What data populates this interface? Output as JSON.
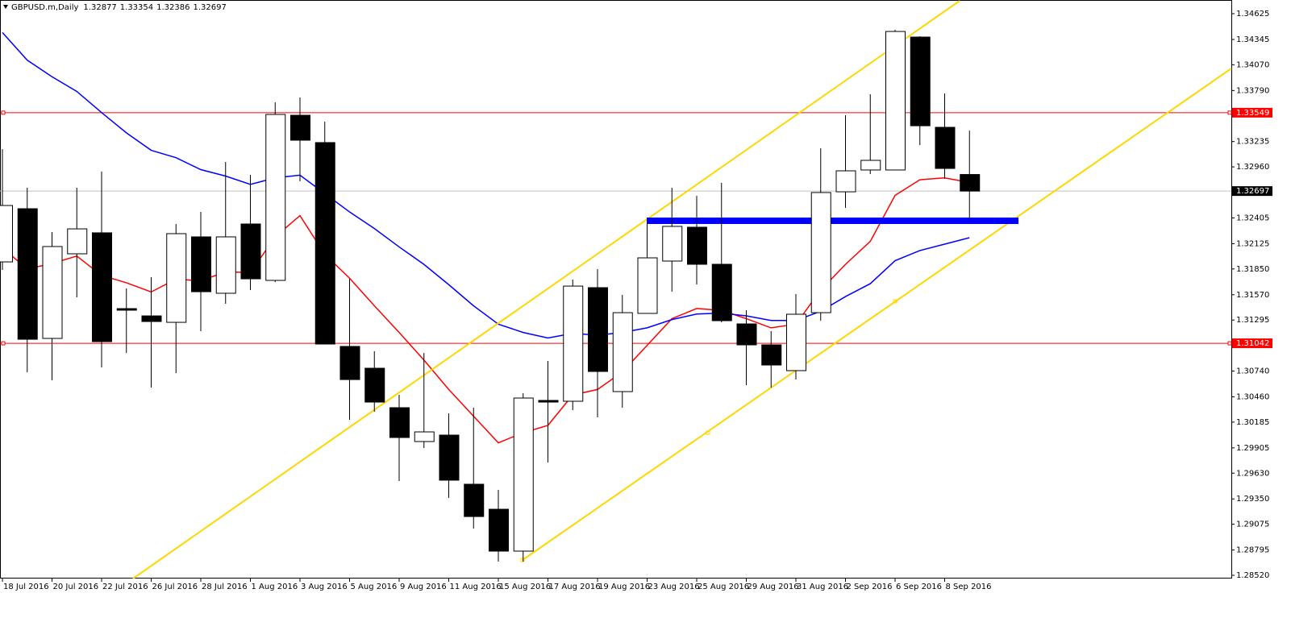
{
  "chart_data": {
    "type": "candlestick",
    "title": "GBPUSD.m,Daily",
    "categories": [
      "18 Jul 2016",
      null,
      "20 Jul 2016",
      null,
      "22 Jul 2016",
      null,
      "26 Jul 2016",
      null,
      "28 Jul 2016",
      null,
      "1 Aug 2016",
      null,
      "3 Aug 2016",
      null,
      "5 Aug 2016",
      null,
      "9 Aug 2016",
      null,
      "11 Aug 2016",
      null,
      "15 Aug 2016",
      null,
      "17 Aug 2016",
      null,
      "19 Aug 2016",
      null,
      "23 Aug 2016",
      null,
      "25 Aug 2016",
      null,
      "29 Aug 2016",
      null,
      "31 Aug 2016",
      null,
      "2 Sep 2016",
      null,
      "6 Sep 2016",
      null,
      "8 Sep 2016",
      null
    ],
    "open": [
      1.31927,
      1.32505,
      1.31095,
      1.32015,
      1.32243,
      1.31419,
      1.3134,
      1.3127,
      1.32199,
      1.31586,
      1.32339,
      1.31726,
      1.33521,
      1.33224,
      1.31008,
      1.30771,
      1.30342,
      1.29974,
      1.30044,
      1.2951,
      1.29238,
      1.28783,
      1.30421,
      1.30412,
      1.31647,
      1.30517,
      1.31367,
      1.31936,
      1.32304,
      1.31901,
      1.31253,
      1.31025,
      1.30745,
      1.31375,
      1.32689,
      1.32926,
      1.32926,
      1.34371,
      1.3339,
      1.32877
    ],
    "high": [
      1.33153,
      1.32733,
      1.32251,
      1.32733,
      1.32908,
      1.31638,
      1.31761,
      1.32339,
      1.3247,
      1.33013,
      1.32873,
      1.33662,
      1.33714,
      1.33451,
      1.31743,
      1.30955,
      1.30482,
      1.30937,
      1.30281,
      1.30342,
      1.29448,
      1.305,
      1.3085,
      1.31735,
      1.31848,
      1.31568,
      1.32356,
      1.32733,
      1.32645,
      1.32786,
      1.31402,
      1.31174,
      1.31577,
      1.33162,
      1.33521,
      1.33749,
      1.3445,
      1.3438,
      1.33758,
      1.33354
    ],
    "low": [
      1.3184,
      1.30727,
      1.3064,
      1.31542,
      1.3078,
      1.30937,
      1.30561,
      1.30718,
      1.31174,
      1.31472,
      1.31621,
      1.31708,
      1.32803,
      1.31034,
      1.3021,
      1.30298,
      1.29545,
      1.29904,
      1.29361,
      1.29028,
      1.28669,
      1.28669,
      1.29746,
      1.30316,
      1.30237,
      1.30342,
      1.31367,
      1.31603,
      1.31682,
      1.3127,
      1.30587,
      1.30561,
      1.30648,
      1.31288,
      1.32514,
      1.32882,
      1.32926,
      1.33197,
      1.32829,
      1.32386
    ],
    "close": [
      1.3254,
      1.31086,
      1.32094,
      1.32286,
      1.3106,
      1.31402,
      1.31279,
      1.32234,
      1.31603,
      1.32199,
      1.31743,
      1.3353,
      1.3325,
      1.31034,
      1.30648,
      1.30403,
      1.30018,
      1.30079,
      1.29554,
      1.29159,
      1.28783,
      1.30447,
      1.30403,
      1.31664,
      1.30736,
      1.31375,
      1.31971,
      1.32313,
      1.31901,
      1.31288,
      1.31025,
      1.30806,
      1.31358,
      1.32681,
      1.32917,
      1.33031,
      1.34432,
      1.33407,
      1.32943,
      1.32697
    ],
    "overlays": [
      {
        "color": "#ff0000",
        "values": [
          1.3208,
          1.3185,
          1.3191,
          1.3199,
          1.3178,
          1.317,
          1.316,
          1.3174,
          1.3172,
          1.3182,
          1.3181,
          1.322,
          1.3243,
          1.3201,
          1.3175,
          1.3145,
          1.3116,
          1.3086,
          1.3054,
          1.3025,
          1.2996,
          1.3007,
          1.3015,
          1.3048,
          1.3054,
          1.3073,
          1.3102,
          1.3131,
          1.3142,
          1.314,
          1.3131,
          1.3121,
          1.3125,
          1.3162,
          1.319,
          1.3215,
          1.3265,
          1.3282,
          1.3284,
          1.3279
        ]
      },
      {
        "color": "#0000ff",
        "values": [
          1.3442,
          1.3412,
          1.3394,
          1.3378,
          1.3355,
          1.3333,
          1.3314,
          1.3306,
          1.3293,
          1.3286,
          1.3277,
          1.3284,
          1.3287,
          1.3267,
          1.3247,
          1.3229,
          1.3209,
          1.319,
          1.3168,
          1.3145,
          1.3125,
          1.3116,
          1.311,
          1.3115,
          1.3113,
          1.3116,
          1.3121,
          1.313,
          1.3136,
          1.3137,
          1.3134,
          1.3129,
          1.3129,
          1.3139,
          1.3155,
          1.3169,
          1.3194,
          1.3205,
          1.3212,
          1.3219
        ]
      }
    ],
    "hlines": [
      {
        "value": 1.33549,
        "color": "#ff0000"
      },
      {
        "value": 1.31042,
        "color": "#ff0000"
      }
    ],
    "ylim": [
      1.28485,
      1.34774
    ],
    "yticks": [
      1.34625,
      1.34345,
      {
        "value": 1.3407,
        "label": "1.34070"
      },
      {
        "value": 1.3379,
        "label": "1.33790"
      },
      1.33235,
      {
        "value": 1.3296,
        "label": "1.32960"
      },
      1.32405,
      1.32125,
      {
        "value": 1.3185,
        "label": "1.31850"
      },
      {
        "value": 1.3157,
        "label": "1.31570"
      },
      1.31295,
      {
        "value": 1.3074,
        "label": "1.30740"
      },
      {
        "value": 1.3046,
        "label": "1.30460"
      },
      1.30185,
      1.29905,
      {
        "value": 1.2963,
        "label": "1.29630"
      },
      {
        "value": 1.2935,
        "label": "1.29350"
      },
      1.29075,
      1.28795,
      {
        "value": 1.2852,
        "label": "1.28520"
      }
    ]
  }
}
